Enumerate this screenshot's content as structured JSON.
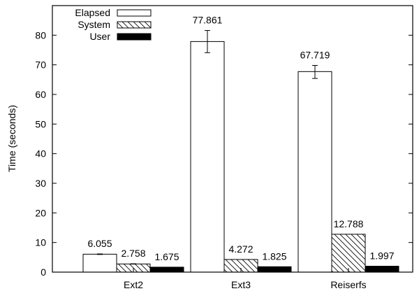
{
  "chart_data": {
    "type": "bar",
    "title": "",
    "xlabel": "",
    "ylabel": "Time (seconds)",
    "ylim": [
      0,
      90
    ],
    "yticks": [
      0,
      10,
      20,
      30,
      40,
      50,
      60,
      70,
      80
    ],
    "categories": [
      "Ext2",
      "Ext3",
      "Reiserfs"
    ],
    "legend_placement": "top-left",
    "grid": false,
    "series": [
      {
        "name": "Elapsed",
        "fill": "white",
        "values": [
          6.055,
          77.861,
          67.719
        ],
        "labels": [
          "6.055",
          "77.861",
          "67.719"
        ],
        "error_low": [
          5.95,
          74.1,
          65.4
        ],
        "error_high": [
          6.15,
          81.6,
          69.8
        ]
      },
      {
        "name": "System",
        "fill": "hatched",
        "values": [
          2.758,
          4.272,
          12.788
        ],
        "labels": [
          "2.758",
          "4.272",
          "12.788"
        ],
        "error_low": [
          2.7,
          4.272,
          12.788
        ],
        "error_high": [
          2.82,
          4.272,
          12.788
        ]
      },
      {
        "name": "User",
        "fill": "black",
        "values": [
          1.675,
          1.825,
          1.997
        ],
        "labels": [
          "1.675",
          "1.825",
          "1.997"
        ]
      }
    ]
  }
}
